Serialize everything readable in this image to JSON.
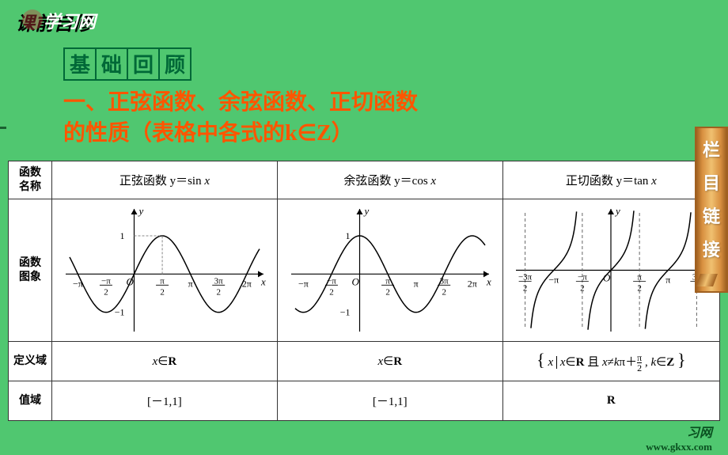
{
  "header": {
    "pre_study": "课前自修",
    "logo": "学习网"
  },
  "basics_label": [
    "基",
    "础",
    "回",
    "顾"
  ],
  "section_title_line1": "一、正弦函数、余弦函数、正切函数",
  "section_title_line2": "的性质（表格中各式的k∈Z）",
  "table": {
    "row_headers": {
      "name": "函数\n名称",
      "graph": "函数\n图象",
      "domain": "定义域",
      "range": "值域"
    },
    "columns": [
      {
        "header": "正弦函数 y＝sin x",
        "domain": "x∈R",
        "range": "[－1,1]",
        "graph": {
          "type": "sine",
          "x_range": [
            -3.6,
            7.0
          ],
          "y_range": [
            -1.4,
            1.6
          ],
          "x_ticks": [
            {
              "val": -3.1416,
              "label": "−π"
            },
            {
              "val": -1.5708,
              "label_frac": [
                "−π",
                "2"
              ]
            },
            {
              "val": 0,
              "label": "O"
            },
            {
              "val": 1.5708,
              "label_frac": [
                "π",
                "2"
              ]
            },
            {
              "val": 3.1416,
              "label": "π"
            },
            {
              "val": 4.7124,
              "label_frac": [
                "3π",
                "2"
              ]
            },
            {
              "val": 6.2832,
              "label": "2π"
            }
          ],
          "y_ticks": [
            {
              "val": 1,
              "label": "1"
            },
            {
              "val": -1,
              "label": "−1"
            }
          ],
          "axis_color": "#000",
          "curve_color": "#000",
          "dashed_color": "#888"
        }
      },
      {
        "header": "余弦函数 y＝cos x",
        "domain": "x∈R",
        "range": "[－1,1]",
        "graph": {
          "type": "cosine",
          "x_range": [
            -3.6,
            7.0
          ],
          "y_range": [
            -1.4,
            1.6
          ],
          "x_ticks": [
            {
              "val": -3.1416,
              "label": "−π"
            },
            {
              "val": -1.5708,
              "label_frac": [
                "−π",
                "2"
              ]
            },
            {
              "val": 0,
              "label": "O"
            },
            {
              "val": 1.5708,
              "label_frac": [
                "π",
                "2"
              ]
            },
            {
              "val": 3.1416,
              "label": "π"
            },
            {
              "val": 4.7124,
              "label_frac": [
                "3π",
                "2"
              ]
            },
            {
              "val": 6.2832,
              "label": "2π"
            }
          ],
          "y_ticks": [
            {
              "val": 1,
              "label": "1"
            },
            {
              "val": -1,
              "label": "−1"
            }
          ],
          "axis_color": "#000",
          "curve_color": "#000",
          "dashed_color": "#888"
        }
      },
      {
        "header": "正切函数 y＝tan x",
        "domain_html": "{ x | x∈R 且 x≠kπ＋π/2 , k∈Z }",
        "range": "R",
        "graph": {
          "type": "tangent",
          "x_range": [
            -5.0,
            5.0
          ],
          "y_range": [
            -3.0,
            3.0
          ],
          "x_ticks": [
            {
              "val": -4.7124,
              "label_frac": [
                "−3π",
                "2"
              ]
            },
            {
              "val": -3.1416,
              "label": "−π"
            },
            {
              "val": -1.5708,
              "label_frac": [
                "−π",
                "2"
              ]
            },
            {
              "val": 0,
              "label": "O"
            },
            {
              "val": 1.5708,
              "label_frac": [
                "π",
                "2"
              ]
            },
            {
              "val": 3.1416,
              "label": "π"
            },
            {
              "val": 4.7124,
              "label_frac": [
                "3π",
                "2"
              ]
            }
          ],
          "asymptotes": [
            -4.7124,
            -1.5708,
            1.5708,
            4.7124
          ],
          "axis_color": "#000",
          "curve_color": "#000",
          "dashed_color": "#666"
        }
      }
    ]
  },
  "sidebar": [
    "栏",
    "目",
    "链",
    "接"
  ],
  "footer": {
    "cn": "习网",
    "url": "www.gkxx.com"
  }
}
